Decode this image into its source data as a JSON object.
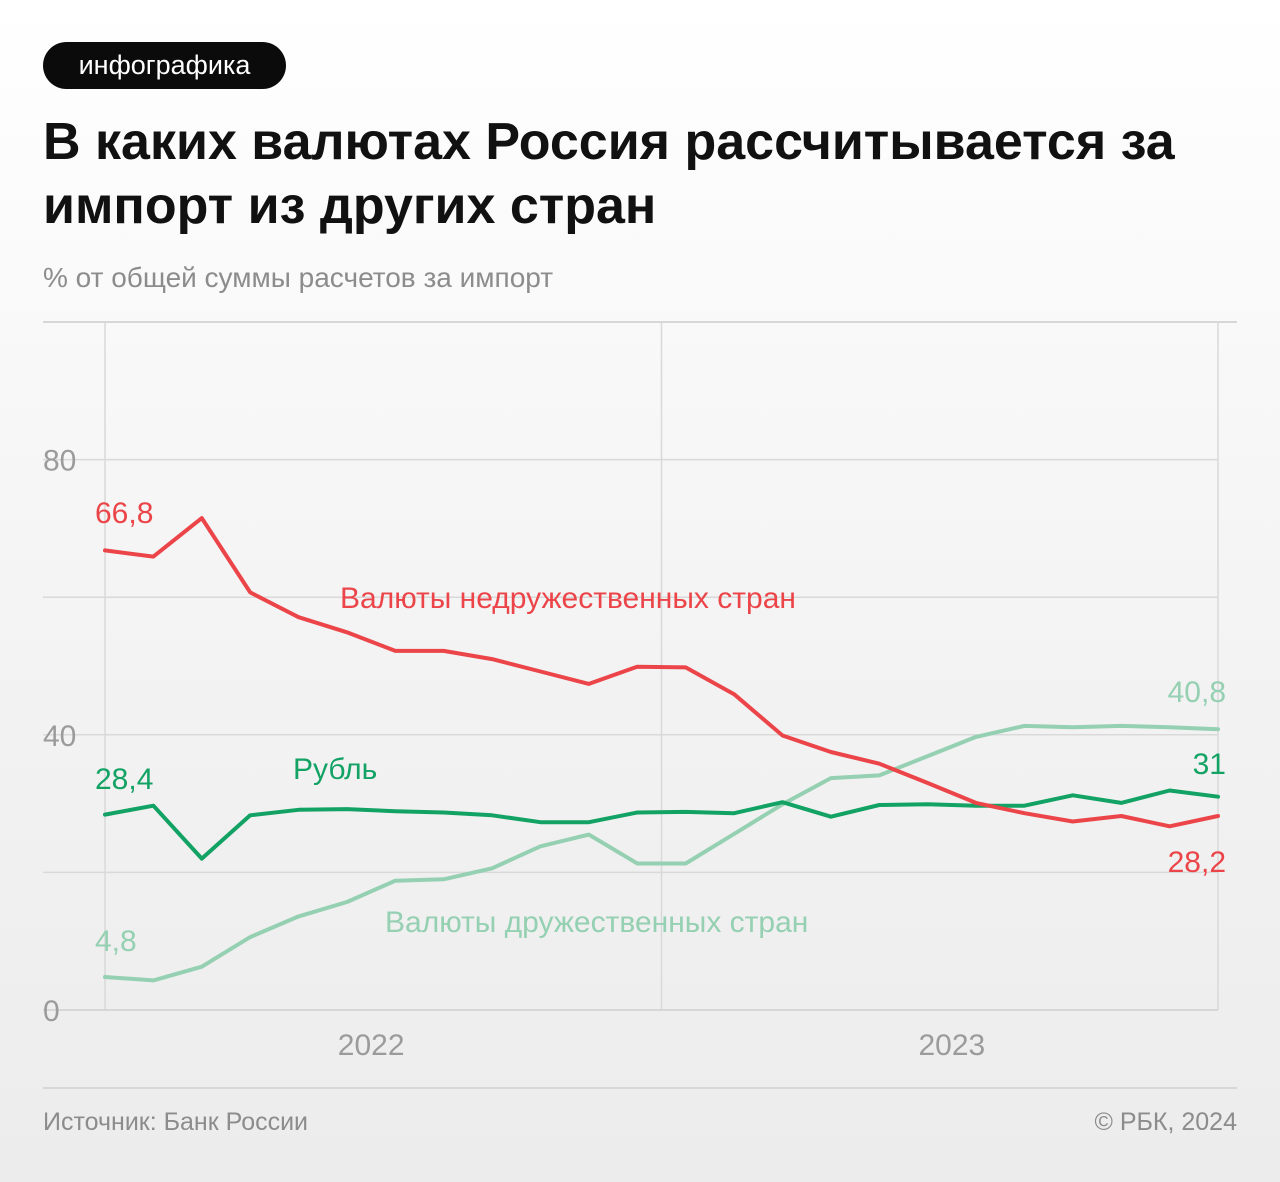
{
  "badge": "инфографика",
  "title": "В каких валютах Россия рассчитывается за импорт из других стран",
  "subtitle": "% от общей суммы расчетов за импорт",
  "source": "Источник: Банк России",
  "copyright": "© РБК, 2024",
  "colors": {
    "unfriendly": "#ec4549",
    "ruble": "#12a264",
    "friendly": "#94d0b1"
  },
  "chart_data": {
    "type": "line",
    "x_tick_labels": [
      "2022",
      "2023"
    ],
    "y_ticks": [
      0,
      40,
      80
    ],
    "ylim": [
      0,
      100
    ],
    "grid": true,
    "series": [
      {
        "name": "Валюты недружественных стран",
        "key": "unfriendly",
        "start_label": "66,8",
        "end_label": "28,2",
        "values": [
          66.8,
          65.9,
          71.5,
          60.7,
          57.1,
          54.9,
          52.2,
          52.2,
          51.0,
          49.2,
          47.4,
          49.9,
          49.8,
          45.9,
          39.9,
          37.5,
          35.8,
          33.0,
          30.1,
          28.6,
          27.4,
          28.2,
          26.7,
          28.2
        ]
      },
      {
        "name": "Рубль",
        "key": "ruble",
        "start_label": "28,4",
        "end_label": "31",
        "values": [
          28.4,
          29.7,
          22.0,
          28.3,
          29.1,
          29.2,
          28.9,
          28.7,
          28.3,
          27.3,
          27.3,
          28.7,
          28.8,
          28.6,
          30.2,
          28.1,
          29.8,
          29.9,
          29.7,
          29.7,
          31.2,
          30.1,
          31.9,
          31.0
        ]
      },
      {
        "name": "Валюты дружественных стран",
        "key": "friendly",
        "start_label": "4,8",
        "end_label": "40,8",
        "values": [
          4.8,
          4.3,
          6.3,
          10.6,
          13.6,
          15.7,
          18.8,
          19.0,
          20.6,
          23.8,
          25.5,
          21.3,
          21.3,
          25.6,
          29.9,
          33.7,
          34.1,
          36.9,
          39.7,
          41.3,
          41.1,
          41.3,
          41.1,
          40.8
        ]
      }
    ]
  }
}
